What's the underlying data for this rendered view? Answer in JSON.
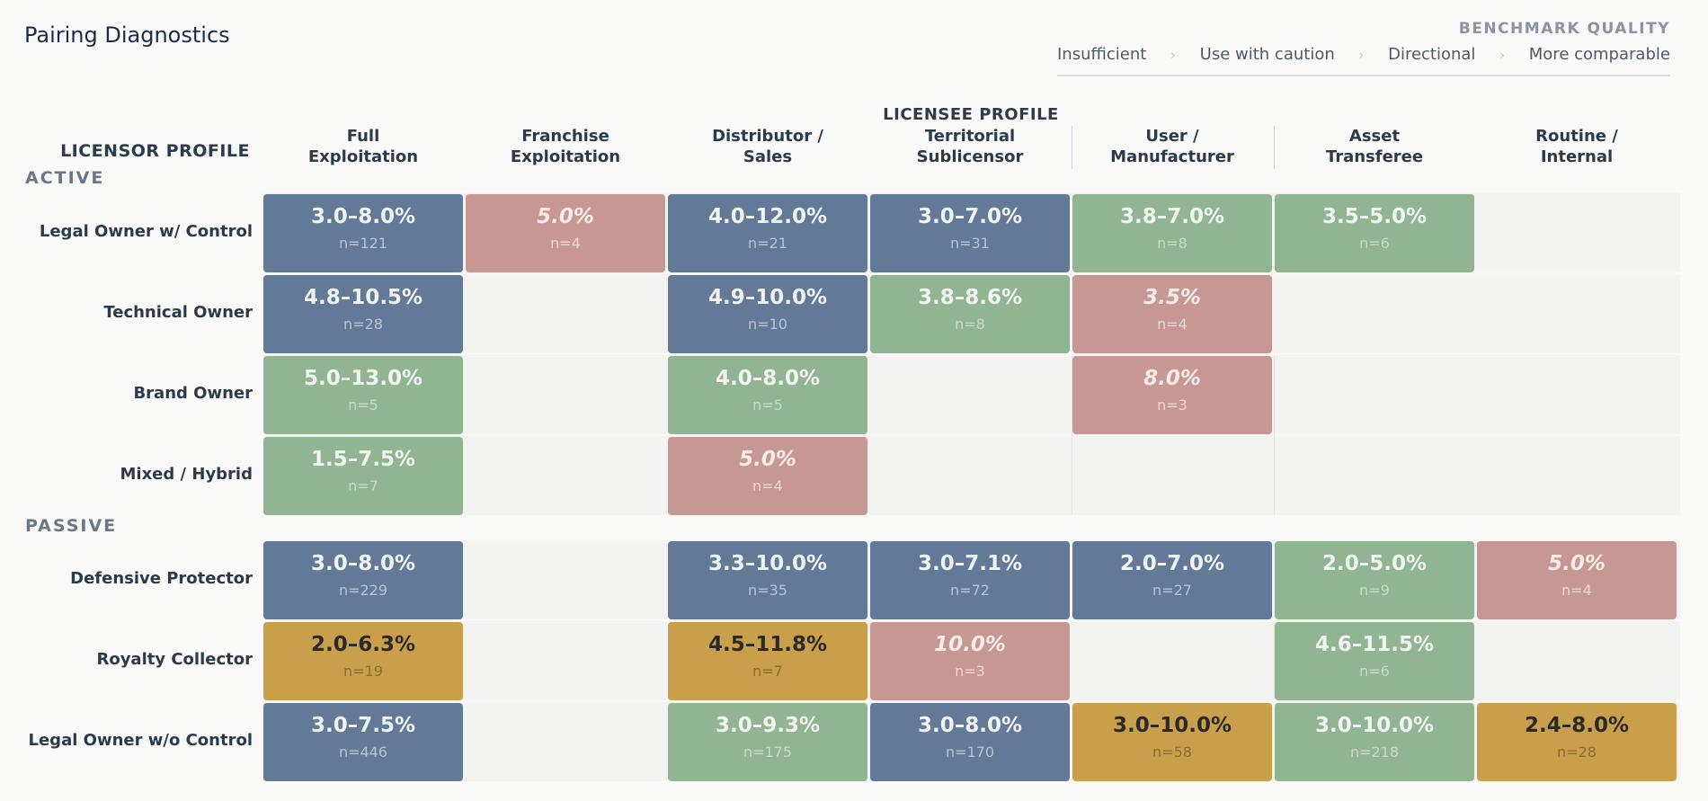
{
  "page": {
    "title": "Pairing Diagnostics"
  },
  "legend": {
    "title": "BENCHMARK QUALITY",
    "items": [
      "Insufficient",
      "Use with caution",
      "Directional",
      "More comparable"
    ],
    "separator": "›"
  },
  "colors": {
    "more_comparable": "#627a97",
    "directional": "#91b593",
    "caution": "#c99f4c",
    "insufficient": "#c79893"
  },
  "chart_data": {
    "type": "heatmap",
    "title": "Pairing Diagnostics",
    "x_axis_label": "LICENSEE PROFILE",
    "y_axis_label": "LICENSOR PROFILE",
    "columns": [
      "Full\nExploitation",
      "Franchise\nExploitation",
      "Distributor /\nSales",
      "Territorial\nSublicensor",
      "User /\nManufacturer",
      "Asset\nTransferee",
      "Routine /\nInternal"
    ],
    "sections": [
      {
        "name": "ACTIVE",
        "rows": [
          {
            "label": "Legal Owner w/ Control",
            "cells": [
              {
                "value": "3.0–8.0%",
                "n": "n=121",
                "bucket": "more_comparable"
              },
              {
                "value": "5.0%",
                "n": "n=4",
                "bucket": "insufficient"
              },
              {
                "value": "4.0–12.0%",
                "n": "n=21",
                "bucket": "more_comparable"
              },
              {
                "value": "3.0–7.0%",
                "n": "n=31",
                "bucket": "more_comparable"
              },
              {
                "value": "3.8–7.0%",
                "n": "n=8",
                "bucket": "directional"
              },
              {
                "value": "3.5–5.0%",
                "n": "n=6",
                "bucket": "directional"
              },
              null
            ]
          },
          {
            "label": "Technical Owner",
            "cells": [
              {
                "value": "4.8–10.5%",
                "n": "n=28",
                "bucket": "more_comparable"
              },
              null,
              {
                "value": "4.9–10.0%",
                "n": "n=10",
                "bucket": "more_comparable"
              },
              {
                "value": "3.8–8.6%",
                "n": "n=8",
                "bucket": "directional"
              },
              {
                "value": "3.5%",
                "n": "n=4",
                "bucket": "insufficient"
              },
              null,
              null
            ]
          },
          {
            "label": "Brand Owner",
            "cells": [
              {
                "value": "5.0–13.0%",
                "n": "n=5",
                "bucket": "directional"
              },
              null,
              {
                "value": "4.0–8.0%",
                "n": "n=5",
                "bucket": "directional"
              },
              null,
              {
                "value": "8.0%",
                "n": "n=3",
                "bucket": "insufficient"
              },
              null,
              null
            ]
          },
          {
            "label": "Mixed / Hybrid",
            "cells": [
              {
                "value": "1.5–7.5%",
                "n": "n=7",
                "bucket": "directional"
              },
              null,
              {
                "value": "5.0%",
                "n": "n=4",
                "bucket": "insufficient"
              },
              null,
              null,
              null,
              null
            ]
          }
        ]
      },
      {
        "name": "PASSIVE",
        "rows": [
          {
            "label": "Defensive Protector",
            "cells": [
              {
                "value": "3.0–8.0%",
                "n": "n=229",
                "bucket": "more_comparable"
              },
              null,
              {
                "value": "3.3–10.0%",
                "n": "n=35",
                "bucket": "more_comparable"
              },
              {
                "value": "3.0–7.1%",
                "n": "n=72",
                "bucket": "more_comparable"
              },
              {
                "value": "2.0–7.0%",
                "n": "n=27",
                "bucket": "more_comparable"
              },
              {
                "value": "2.0–5.0%",
                "n": "n=9",
                "bucket": "directional"
              },
              {
                "value": "5.0%",
                "n": "n=4",
                "bucket": "insufficient"
              }
            ]
          },
          {
            "label": "Royalty Collector",
            "cells": [
              {
                "value": "2.0–6.3%",
                "n": "n=19",
                "bucket": "caution"
              },
              null,
              {
                "value": "4.5–11.8%",
                "n": "n=7",
                "bucket": "caution"
              },
              {
                "value": "10.0%",
                "n": "n=3",
                "bucket": "insufficient"
              },
              null,
              {
                "value": "4.6–11.5%",
                "n": "n=6",
                "bucket": "directional"
              },
              null
            ]
          },
          {
            "label": "Legal Owner w/o Control",
            "cells": [
              {
                "value": "3.0–7.5%",
                "n": "n=446",
                "bucket": "more_comparable"
              },
              null,
              {
                "value": "3.0–9.3%",
                "n": "n=175",
                "bucket": "directional"
              },
              {
                "value": "3.0–8.0%",
                "n": "n=170",
                "bucket": "more_comparable"
              },
              {
                "value": "3.0–10.0%",
                "n": "n=58",
                "bucket": "caution"
              },
              {
                "value": "3.0–10.0%",
                "n": "n=218",
                "bucket": "directional"
              },
              {
                "value": "2.4–8.0%",
                "n": "n=28",
                "bucket": "caution"
              }
            ]
          }
        ]
      }
    ]
  }
}
